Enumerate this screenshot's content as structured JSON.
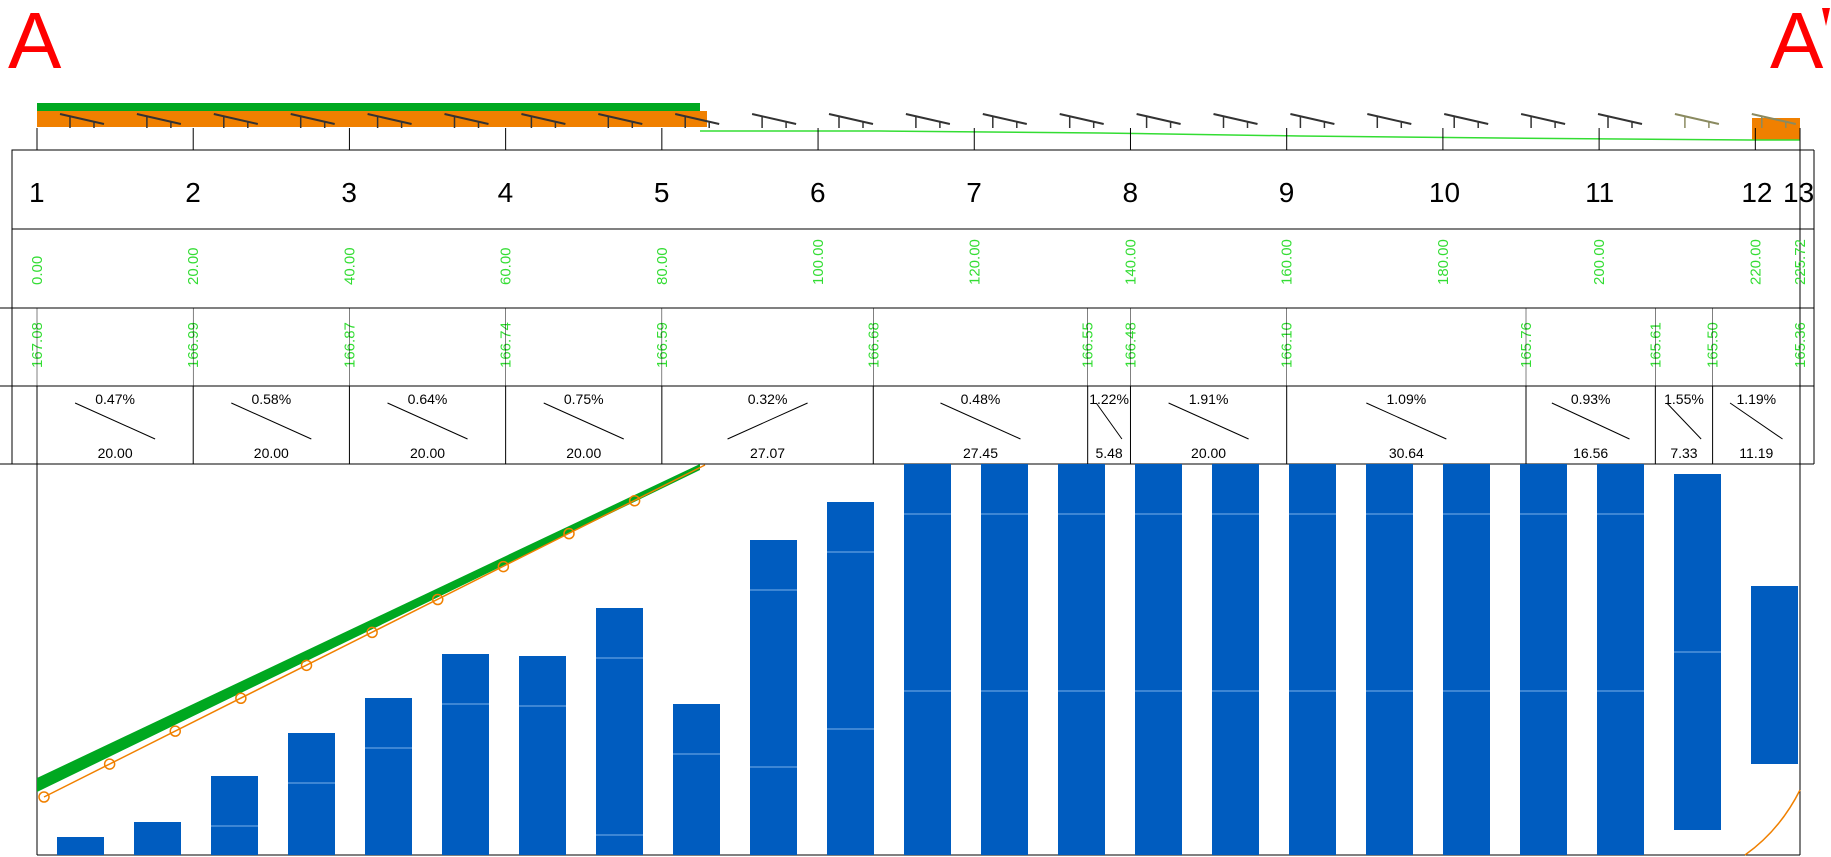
{
  "section": {
    "start_label": "A",
    "end_label": "A"
  },
  "stations": [
    "1",
    "2",
    "3",
    "4",
    "5",
    "6",
    "7",
    "8",
    "9",
    "10",
    "11",
    "12",
    "13"
  ],
  "chainages": [
    "0.00",
    "20.00",
    "40.00",
    "60.00",
    "80.00",
    "100.00",
    "120.00",
    "140.00",
    "160.00",
    "180.00",
    "200.00",
    "220.00",
    "225.72"
  ],
  "elevations": [
    "167.08",
    "166.99",
    "166.87",
    "166.74",
    "166.59",
    "166.68",
    "166.55",
    "166.48",
    "166.10",
    "165.76",
    "165.61",
    "165.50",
    "165.36"
  ],
  "segments": [
    {
      "slope": "0.47%",
      "length": "20.00",
      "dir": "down"
    },
    {
      "slope": "0.58%",
      "length": "20.00",
      "dir": "down"
    },
    {
      "slope": "0.64%",
      "length": "20.00",
      "dir": "down"
    },
    {
      "slope": "0.75%",
      "length": "20.00",
      "dir": "down"
    },
    {
      "slope": "0.32%",
      "length": "27.07",
      "dir": "up"
    },
    {
      "slope": "0.48%",
      "length": "27.45",
      "dir": "down"
    },
    {
      "slope": "1.22%",
      "length": "5.48",
      "dir": "down"
    },
    {
      "slope": "1.91%",
      "length": "20.00",
      "dir": "down"
    },
    {
      "slope": "1.09%",
      "length": "30.64",
      "dir": "down"
    },
    {
      "slope": "0.93%",
      "length": "16.56",
      "dir": "down"
    },
    {
      "slope": "1.55%",
      "length": "7.33",
      "dir": "down"
    },
    {
      "slope": "1.19%",
      "length": "11.19",
      "dir": "down"
    }
  ],
  "colors": {
    "section_letter": "#ff0000",
    "bar": "#005cbf",
    "green": "#00a820",
    "orange": "#f08000",
    "ground": "#33dd33"
  }
}
